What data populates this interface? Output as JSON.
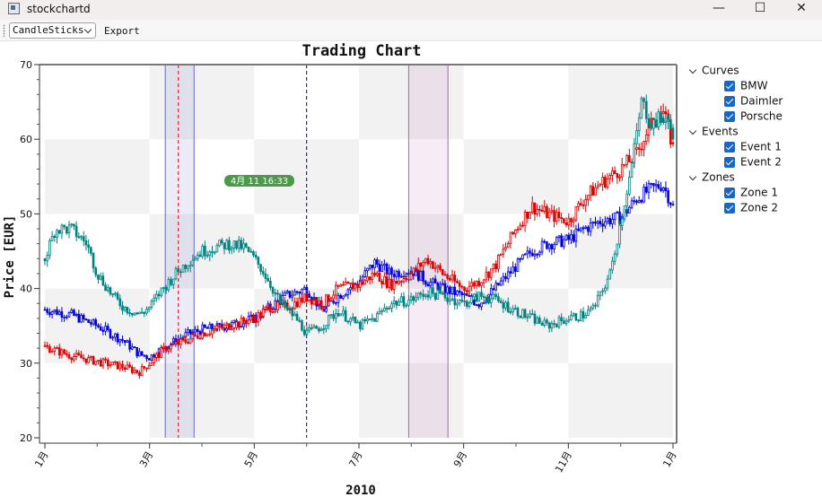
{
  "window": {
    "title": "stockchartd",
    "minimize_glyph": "—",
    "maximize_glyph": "☐",
    "close_glyph": "✕"
  },
  "toolbar": {
    "chart_type": "CandleSticks",
    "export_label": "Export"
  },
  "chart_data": {
    "type": "candlestick",
    "title": "Trading Chart",
    "xlabel": "2010",
    "ylabel": "Price [EUR]",
    "ylim": [
      20,
      70
    ],
    "y_ticks": [
      "20",
      "30",
      "40",
      "50",
      "60",
      "70"
    ],
    "x_ticks": [
      "1月",
      "3月",
      "5月",
      "7月",
      "9月",
      "11月",
      "1月"
    ],
    "x_tick_months": [
      0,
      2,
      4,
      6,
      8,
      10,
      12
    ],
    "marker_label": "4月 11 16:33",
    "series": [
      {
        "name": "BMW",
        "color": "#0000dd",
        "points": [
          [
            0,
            37.2
          ],
          [
            0.5,
            36.5
          ],
          [
            1,
            35
          ],
          [
            1.5,
            33
          ],
          [
            1.8,
            31.2
          ],
          [
            2,
            30.8
          ],
          [
            2.3,
            32.2
          ],
          [
            2.7,
            33.8
          ],
          [
            3,
            34.5
          ],
          [
            3.5,
            35
          ],
          [
            4,
            36
          ],
          [
            4.3,
            37.5
          ],
          [
            4.6,
            39
          ],
          [
            5,
            40
          ],
          [
            5.3,
            37
          ],
          [
            5.6,
            39
          ],
          [
            6,
            41
          ],
          [
            6.3,
            43.5
          ],
          [
            6.6,
            42
          ],
          [
            7,
            42.5
          ],
          [
            7.3,
            41
          ],
          [
            7.6,
            40
          ],
          [
            8,
            39
          ],
          [
            8.3,
            38
          ],
          [
            8.6,
            40
          ],
          [
            9,
            43
          ],
          [
            9.3,
            45
          ],
          [
            9.6,
            46
          ],
          [
            10,
            46.5
          ],
          [
            10.3,
            48
          ],
          [
            10.6,
            49
          ],
          [
            11,
            49.5
          ],
          [
            11.3,
            52
          ],
          [
            11.5,
            53
          ],
          [
            11.8,
            54
          ],
          [
            12,
            51
          ]
        ]
      },
      {
        "name": "Daimler",
        "color": "#dd0000",
        "points": [
          [
            0,
            32.2
          ],
          [
            0.5,
            31
          ],
          [
            1,
            30.2
          ],
          [
            1.5,
            29.5
          ],
          [
            1.8,
            28.8
          ],
          [
            2,
            30
          ],
          [
            2.3,
            32
          ],
          [
            2.7,
            33
          ],
          [
            3,
            34
          ],
          [
            3.5,
            35
          ],
          [
            4,
            36
          ],
          [
            4.3,
            37.5
          ],
          [
            4.6,
            37.5
          ],
          [
            5,
            38.8
          ],
          [
            5.3,
            38
          ],
          [
            5.6,
            40
          ],
          [
            6,
            40.5
          ],
          [
            6.3,
            42
          ],
          [
            6.6,
            40.5
          ],
          [
            7,
            42
          ],
          [
            7.3,
            44
          ],
          [
            7.6,
            42
          ],
          [
            8,
            40
          ],
          [
            8.3,
            41
          ],
          [
            8.6,
            43
          ],
          [
            9,
            48
          ],
          [
            9.3,
            51
          ],
          [
            9.6,
            50
          ],
          [
            10,
            49
          ],
          [
            10.3,
            52
          ],
          [
            10.6,
            54
          ],
          [
            11,
            56
          ],
          [
            11.3,
            58
          ],
          [
            11.5,
            61
          ],
          [
            11.8,
            64
          ],
          [
            12,
            59
          ]
        ]
      },
      {
        "name": "Porsche",
        "color": "#008080",
        "points": [
          [
            0,
            44
          ],
          [
            0.2,
            48
          ],
          [
            0.5,
            48
          ],
          [
            0.8,
            46
          ],
          [
            1,
            42
          ],
          [
            1.3,
            39
          ],
          [
            1.5,
            37.5
          ],
          [
            1.8,
            36.5
          ],
          [
            2,
            37.5
          ],
          [
            2.2,
            39.5
          ],
          [
            2.5,
            42
          ],
          [
            2.8,
            44
          ],
          [
            3,
            45
          ],
          [
            3.5,
            46
          ],
          [
            3.8,
            45.5
          ],
          [
            4,
            44
          ],
          [
            4.2,
            42
          ],
          [
            4.5,
            38
          ],
          [
            4.8,
            36
          ],
          [
            5,
            34
          ],
          [
            5.3,
            35
          ],
          [
            5.6,
            37
          ],
          [
            6,
            35
          ],
          [
            6.3,
            36
          ],
          [
            6.6,
            38
          ],
          [
            7,
            38.5
          ],
          [
            7.3,
            39.5
          ],
          [
            7.6,
            39
          ],
          [
            8,
            38
          ],
          [
            8.3,
            39
          ],
          [
            8.6,
            38.5
          ],
          [
            9,
            37
          ],
          [
            9.3,
            36
          ],
          [
            9.6,
            35
          ],
          [
            10,
            36
          ],
          [
            10.3,
            36.5
          ],
          [
            10.5,
            37.5
          ],
          [
            10.8,
            42
          ],
          [
            11,
            49
          ],
          [
            11.2,
            56
          ],
          [
            11.4,
            65
          ],
          [
            11.6,
            62
          ],
          [
            11.8,
            63
          ],
          [
            12,
            61
          ]
        ]
      }
    ],
    "events": [
      {
        "name": "Event 1",
        "month": 2.55,
        "color": "#dd0000"
      },
      {
        "name": "Event 2",
        "month": 5.0,
        "color": "#000099"
      }
    ],
    "zones": [
      {
        "name": "Zone 1",
        "start": 2.3,
        "end": 2.85,
        "color": "#6666cc"
      },
      {
        "name": "Zone 2",
        "start": 6.95,
        "end": 7.7,
        "color": "#aa66aa"
      }
    ]
  },
  "legend_tree": {
    "groups": [
      {
        "label": "Curves",
        "items": [
          "BMW",
          "Daimler",
          "Porsche"
        ]
      },
      {
        "label": "Events",
        "items": [
          "Event 1",
          "Event 2"
        ]
      },
      {
        "label": "Zones",
        "items": [
          "Zone 1",
          "Zone 2"
        ]
      }
    ]
  }
}
